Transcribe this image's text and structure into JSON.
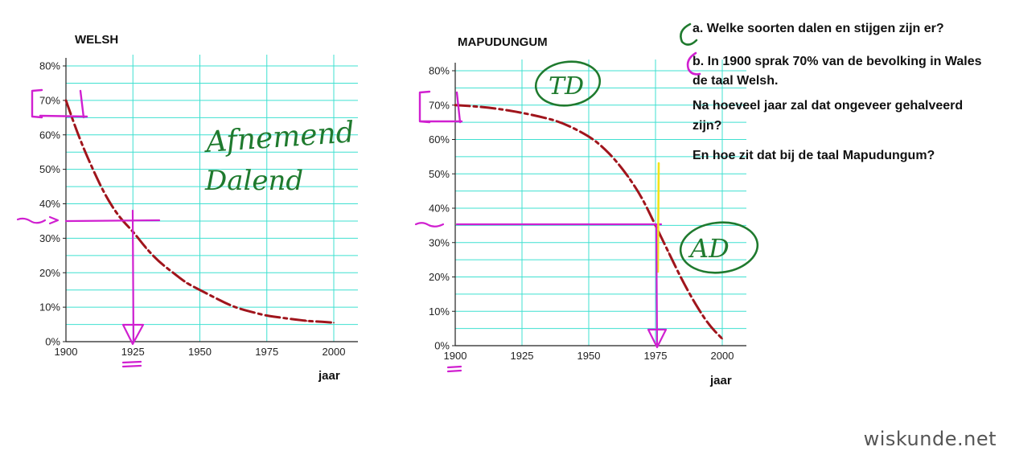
{
  "questions": {
    "a": "a. Welke soorten dalen en stijgen zijn er?",
    "b_line1": "b. In 1900 sprak 70% van de bevolking in Wales",
    "b_line2": "de taal Welsh.",
    "b_line3": "Na hoeveel jaar zal dat ongeveer gehalveerd",
    "b_line4": "zijn?",
    "b_line5": "En hoe zit dat bij de taal Mapudungum?"
  },
  "brand": "wiskunde.net",
  "annotations": {
    "welsh_note_1": "Afnemend",
    "welsh_note_2": "Dalend",
    "mapu_note_1": "TD",
    "mapu_note_2": "AD"
  },
  "colors": {
    "grid": "#3fe0d0",
    "curve": "#a0151c",
    "annotation_magenta": "#d020d0",
    "annotation_green": "#1f7a2e",
    "highlight_yellow": "#f2e21a"
  },
  "chart_data": [
    {
      "type": "line",
      "title": "WELSH",
      "xlabel": "jaar",
      "ylabel": "",
      "x_ticks": [
        "1900",
        "1925",
        "1950",
        "1975",
        "2000"
      ],
      "y_ticks": [
        "0%",
        "10%",
        "20%",
        "30%",
        "40%",
        "50%",
        "60%",
        "70%",
        "80%"
      ],
      "xlim": [
        1900,
        2000
      ],
      "ylim": [
        0,
        80
      ],
      "grid": true,
      "line_style": "dashed",
      "series": [
        {
          "x": [
            1900,
            1905,
            1910,
            1915,
            1920,
            1925,
            1930,
            1935,
            1940,
            1945,
            1950,
            1955,
            1960,
            1965,
            1970,
            1975,
            1980,
            1985,
            1990,
            1995,
            2000
          ],
          "values": [
            70,
            59,
            50,
            42,
            36,
            32,
            27,
            23,
            20,
            17,
            15,
            13,
            11,
            9.5,
            8.5,
            7.5,
            7,
            6.5,
            6,
            5.8,
            5.5
          ]
        }
      ]
    },
    {
      "type": "line",
      "title": "MAPUDUNGUM",
      "xlabel": "jaar",
      "ylabel": "",
      "x_ticks": [
        "1900",
        "1925",
        "1950",
        "1975",
        "2000"
      ],
      "y_ticks": [
        "0%",
        "10%",
        "20%",
        "30%",
        "40%",
        "50%",
        "60%",
        "70%",
        "80%"
      ],
      "xlim": [
        1900,
        2000
      ],
      "ylim": [
        0,
        80
      ],
      "grid": true,
      "line_style": "dashed",
      "series": [
        {
          "x": [
            1900,
            1910,
            1920,
            1930,
            1940,
            1950,
            1955,
            1960,
            1965,
            1970,
            1975,
            1980,
            1985,
            1990,
            1995,
            2000
          ],
          "values": [
            70,
            69.5,
            68.5,
            67,
            65,
            61,
            58,
            54,
            49,
            43,
            35,
            27,
            19,
            12,
            6,
            2
          ]
        }
      ]
    }
  ]
}
